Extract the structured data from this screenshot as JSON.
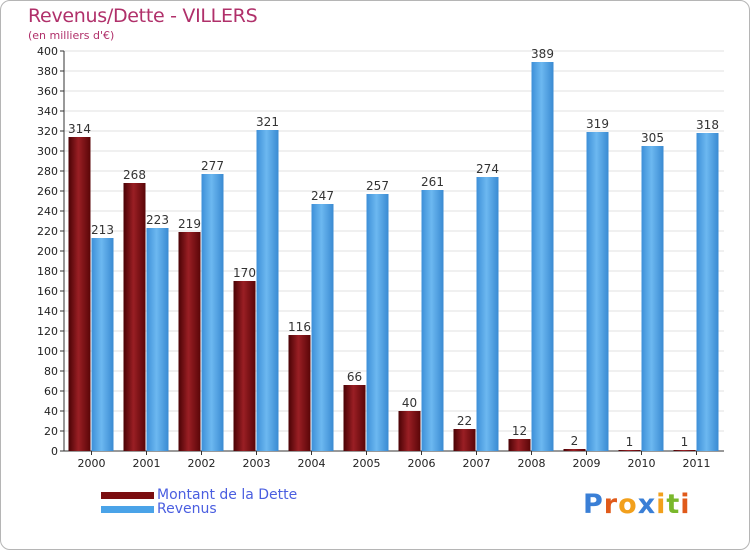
{
  "chart_data": {
    "type": "bar",
    "title": "Revenus/Dette - VILLERS",
    "subtitle": "(en milliers d'€)",
    "categories": [
      "2000",
      "2001",
      "2002",
      "2003",
      "2004",
      "2005",
      "2006",
      "2007",
      "2008",
      "2009",
      "2010",
      "2011"
    ],
    "series": [
      {
        "name": "Montant de la Dette",
        "color": "#7a0d10",
        "values": [
          314,
          268,
          219,
          170,
          116,
          66,
          40,
          22,
          12,
          2,
          1,
          1
        ]
      },
      {
        "name": "Revenus",
        "color": "#4aa3e8",
        "values": [
          213,
          223,
          277,
          321,
          247,
          257,
          261,
          274,
          389,
          319,
          305,
          318
        ]
      }
    ],
    "ylim": [
      0,
      400
    ],
    "ytick_step": 20,
    "grid": true,
    "legend": "bottom-left"
  },
  "brand": {
    "logo_text": "Proxiti"
  }
}
